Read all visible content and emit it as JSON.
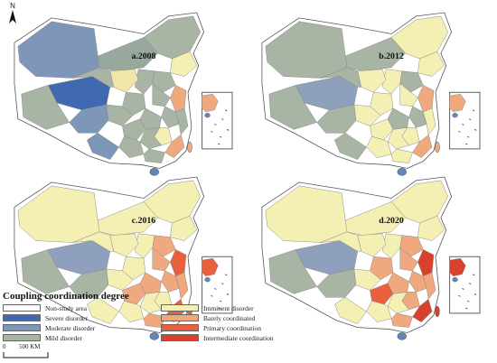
{
  "north_label": "N",
  "panels": [
    {
      "title": "a.2008",
      "scheme": [
        "#a8b4a4",
        "#98a89c",
        "#7e96b8",
        "#3f6ab0",
        "#f4f0b4",
        "#a8b4a4",
        "#a8b4a4",
        "#f0e6aa",
        "#a8b4a4",
        "#a8b4a4",
        "#f0a87e",
        "#a8b4a4",
        "#a8b4a4",
        "#a8b4a4",
        "#a8b4a4",
        "#a8b4a4",
        "#f4f0b4",
        "#a8b4a4",
        "#f0a87e",
        "#a8b4a4",
        "#a8b4a4",
        "#7e96b8",
        "#a8b4a4",
        "#7e96b8",
        "#a8b4a4"
      ],
      "island": "#5f87bf"
    },
    {
      "title": "b.2012",
      "scheme": [
        "#f4f0b4",
        "#a8b4a4",
        "#a8b4a4",
        "#8ea0bc",
        "#f4f0b4",
        "#a8b4a4",
        "#f4f0b4",
        "#f4f0b4",
        "#f4f0b4",
        "#a8b4a4",
        "#f0a87e",
        "#f4f0b4",
        "#a8b4a4",
        "#a8b4a4",
        "#f4f0b4",
        "#f4f0b4",
        "#f4f0b4",
        "#f4f0b4",
        "#f0a87e",
        "#f4f0b4",
        "#f4f0b4",
        "#a8b4a4",
        "#f4f0b4",
        "#a8b4a4",
        "#a8b4a4"
      ],
      "island": "#5f87bf"
    },
    {
      "title": "c.2016",
      "scheme": [
        "#f4f0b4",
        "#f4f0b4",
        "#f4f0b4",
        "#8ea0bc",
        "#f4f0b4",
        "#f0a87e",
        "#f4f0b4",
        "#f4f0b4",
        "#f4f0b4",
        "#a8b4a4",
        "#e8603c",
        "#f0a87e",
        "#f0a87e",
        "#f0a87e",
        "#f4f0b4",
        "#f0a87e",
        "#f4f0b4",
        "#f0a87e",
        "#e8603c",
        "#f4f0b4",
        "#f4f0b4",
        "#a8b4a4",
        "#f0a87e",
        "#f4f0b4",
        "#f4f0b4"
      ],
      "island": "#5f87bf"
    },
    {
      "title": "d.2020",
      "scheme": [
        "#f4f0b4",
        "#f4f0b4",
        "#f4f0b4",
        "#8ea0bc",
        "#f4f0b4",
        "#f0a87e",
        "#f4f0b4",
        "#f4f0b4",
        "#f0a87e",
        "#a8b4a4",
        "#d8412b",
        "#f0a87e",
        "#f0a87e",
        "#f0a87e",
        "#f4f0b4",
        "#e8603c",
        "#f0a87e",
        "#f0a87e",
        "#d8412b",
        "#f4f0b4",
        "#f4f0b4",
        "#a8b4a4",
        "#f0a87e",
        "#f4f0b4",
        "#f4f0b4"
      ],
      "island": "#5f87bf"
    }
  ],
  "legend": {
    "title": "Coupling coordination degree",
    "items": [
      {
        "label": "Non-study area",
        "color": "#ffffff"
      },
      {
        "label": "Severe disorder",
        "color": "#3f6ab0"
      },
      {
        "label": "Moderate disorder",
        "color": "#7e96b8"
      },
      {
        "label": "Mild disorder",
        "color": "#a8b4a4"
      },
      {
        "label": "Imminent disorder",
        "color": "#f4f0b4"
      },
      {
        "label": "Barely coordinated",
        "color": "#f0a87e"
      },
      {
        "label": "Primary coordination",
        "color": "#e8603c"
      },
      {
        "label": "Intermediate coordination",
        "color": "#d8412b"
      }
    ]
  },
  "scale": {
    "start": "0",
    "end": "500 KM"
  }
}
